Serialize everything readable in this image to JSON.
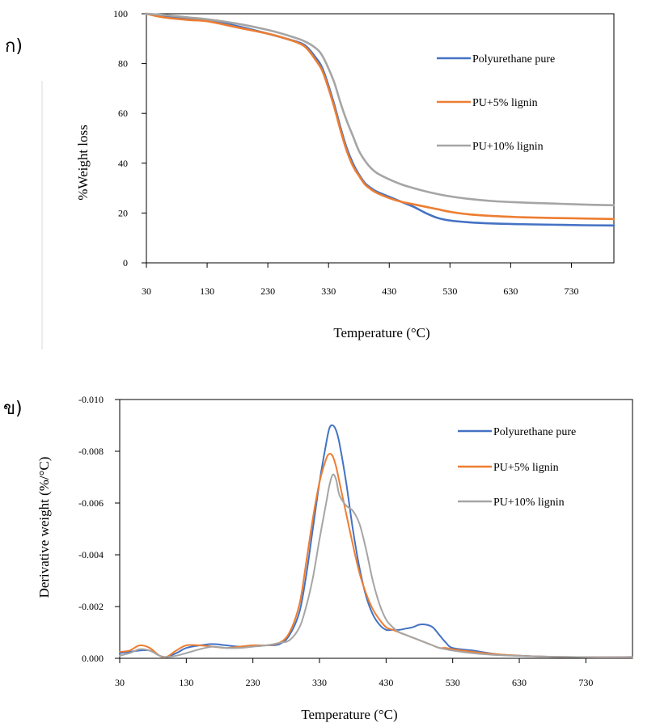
{
  "colors": {
    "pure": "#4472C4",
    "lignin5": "#ED7D31",
    "lignin10": "#A5A5A5"
  },
  "chart_data": [
    {
      "type": "line",
      "panel_label": "ก)",
      "xlabel": "Temperature (°C)",
      "ylabel": "%Weight loss",
      "xlim": [
        30,
        800
      ],
      "ylim": [
        0,
        100
      ],
      "xticks": [
        30,
        130,
        230,
        330,
        430,
        530,
        630,
        730
      ],
      "yticks": [
        0,
        20,
        40,
        60,
        80,
        100
      ],
      "grid": false,
      "legend": "right",
      "series": [
        {
          "name": "Polyurethane pure",
          "color_key": "pure",
          "x": [
            30,
            60,
            100,
            130,
            180,
            230,
            260,
            290,
            310,
            320,
            330,
            340,
            350,
            360,
            370,
            380,
            390,
            400,
            410,
            430,
            450,
            470,
            490,
            510,
            530,
            560,
            600,
            650,
            700,
            750,
            800
          ],
          "y": [
            100,
            99,
            98,
            97.5,
            95,
            92,
            90,
            87.5,
            82,
            78,
            71,
            63,
            54,
            46,
            40,
            35.5,
            32,
            30,
            28.5,
            26.5,
            24.5,
            22.5,
            20,
            18,
            17,
            16.3,
            15.8,
            15.5,
            15.3,
            15.1,
            15
          ]
        },
        {
          "name": "PU+5% lignin",
          "color_key": "lignin5",
          "x": [
            30,
            60,
            100,
            130,
            180,
            230,
            260,
            290,
            310,
            320,
            330,
            340,
            350,
            360,
            370,
            380,
            390,
            400,
            410,
            430,
            450,
            470,
            490,
            510,
            530,
            560,
            600,
            650,
            700,
            750,
            800
          ],
          "y": [
            100,
            98.5,
            97.5,
            97,
            94.5,
            92,
            90,
            87,
            81,
            77,
            70,
            62,
            53,
            45,
            39,
            35,
            31.5,
            29.5,
            28,
            26,
            24.5,
            23.5,
            22.5,
            21.5,
            20.5,
            19.5,
            18.8,
            18.3,
            18,
            17.8,
            17.6
          ]
        },
        {
          "name": "PU+10% lignin",
          "color_key": "lignin10",
          "x": [
            30,
            60,
            100,
            130,
            180,
            230,
            260,
            290,
            310,
            320,
            330,
            340,
            350,
            360,
            370,
            380,
            390,
            400,
            410,
            430,
            450,
            470,
            490,
            510,
            530,
            560,
            600,
            650,
            700,
            750,
            800
          ],
          "y": [
            100,
            99.5,
            98.5,
            97.8,
            96,
            93.5,
            91.5,
            89,
            86,
            83,
            78,
            72,
            64,
            57,
            51,
            45,
            41,
            38,
            36,
            33.5,
            31.5,
            30,
            28.7,
            27.6,
            26.7,
            25.7,
            24.8,
            24.2,
            23.8,
            23.4,
            23.1
          ]
        }
      ]
    },
    {
      "type": "line",
      "panel_label": "ข)",
      "xlabel": "Temperature (°C)",
      "ylabel": "Derivative weight (%/°C)",
      "xlim": [
        30,
        800
      ],
      "ylim": [
        0,
        -0.01
      ],
      "xticks": [
        30,
        130,
        230,
        330,
        430,
        530,
        630,
        730
      ],
      "yticks": [
        0,
        -0.002,
        -0.004,
        -0.006,
        -0.008,
        -0.01
      ],
      "ytick_labels": [
        "0.000",
        "-0.002",
        "-0.004",
        "-0.006",
        "-0.008",
        "-0.010"
      ],
      "grid": false,
      "legend": "top-right",
      "series": [
        {
          "name": "Polyurethane pure",
          "color_key": "pure",
          "x": [
            30,
            45,
            60,
            75,
            90,
            100,
            115,
            130,
            150,
            170,
            190,
            210,
            230,
            250,
            270,
            285,
            300,
            310,
            320,
            330,
            340,
            345,
            350,
            355,
            360,
            370,
            380,
            390,
            400,
            410,
            420,
            430,
            440,
            450,
            460,
            470,
            480,
            490,
            500,
            510,
            520,
            530,
            560,
            600,
            650,
            700,
            750,
            800
          ],
          "y": [
            -0.0002,
            -0.00025,
            -0.0003,
            -0.0003,
            -0.0001,
            -5e-05,
            -0.0002,
            -0.0004,
            -0.0005,
            -0.00055,
            -0.0005,
            -0.00045,
            -0.0005,
            -0.0005,
            -0.00055,
            -0.0009,
            -0.0018,
            -0.0032,
            -0.005,
            -0.0068,
            -0.0083,
            -0.0089,
            -0.009,
            -0.0088,
            -0.0083,
            -0.0068,
            -0.005,
            -0.0035,
            -0.0024,
            -0.0017,
            -0.0013,
            -0.0011,
            -0.0011,
            -0.0011,
            -0.00115,
            -0.0012,
            -0.0013,
            -0.0013,
            -0.0012,
            -0.0009,
            -0.0006,
            -0.0004,
            -0.0003,
            -0.00015,
            -8e-05,
            -5e-05,
            -4e-05,
            -5e-05
          ]
        },
        {
          "name": "PU+5% lignin",
          "color_key": "lignin5",
          "x": [
            30,
            45,
            60,
            75,
            90,
            100,
            115,
            130,
            150,
            170,
            190,
            210,
            230,
            250,
            270,
            285,
            300,
            310,
            320,
            330,
            340,
            345,
            350,
            355,
            360,
            370,
            380,
            390,
            400,
            410,
            420,
            430,
            440,
            450,
            460,
            470,
            480,
            490,
            500,
            510,
            520,
            530,
            560,
            600,
            650,
            700,
            750,
            800
          ],
          "y": [
            -0.00025,
            -0.0003,
            -0.0005,
            -0.0004,
            -0.0001,
            -5e-05,
            -0.0003,
            -0.0005,
            -0.0005,
            -0.00045,
            -0.0004,
            -0.00045,
            -0.0005,
            -0.0005,
            -0.0006,
            -0.001,
            -0.0021,
            -0.0037,
            -0.0054,
            -0.0068,
            -0.0077,
            -0.0079,
            -0.0078,
            -0.0074,
            -0.0068,
            -0.0056,
            -0.0044,
            -0.0033,
            -0.0025,
            -0.0019,
            -0.0015,
            -0.0012,
            -0.0011,
            -0.001,
            -0.0009,
            -0.0008,
            -0.0007,
            -0.0006,
            -0.0005,
            -0.0004,
            -0.0004,
            -0.00035,
            -0.00025,
            -0.00015,
            -8e-05,
            -5e-05,
            -4e-05,
            -4e-05
          ]
        },
        {
          "name": "PU+10% lignin",
          "color_key": "lignin10",
          "x": [
            30,
            45,
            60,
            75,
            90,
            100,
            115,
            130,
            150,
            170,
            190,
            210,
            230,
            250,
            270,
            285,
            300,
            310,
            320,
            330,
            340,
            345,
            350,
            355,
            360,
            370,
            380,
            390,
            400,
            410,
            420,
            430,
            440,
            450,
            460,
            470,
            480,
            490,
            500,
            510,
            520,
            530,
            560,
            600,
            650,
            700,
            750,
            800
          ],
          "y": [
            -0.0001,
            -0.0002,
            -0.00035,
            -0.0003,
            -0.0001,
            -5e-05,
            -0.0001,
            -0.0002,
            -0.00035,
            -0.00045,
            -0.0004,
            -0.0004,
            -0.00045,
            -0.0005,
            -0.0006,
            -0.0007,
            -0.0012,
            -0.002,
            -0.0031,
            -0.0046,
            -0.006,
            -0.0067,
            -0.0071,
            -0.0069,
            -0.0063,
            -0.0059,
            -0.0057,
            -0.0052,
            -0.0042,
            -0.003,
            -0.0021,
            -0.0015,
            -0.0012,
            -0.001,
            -0.0009,
            -0.0008,
            -0.0007,
            -0.0006,
            -0.0005,
            -0.0004,
            -0.00035,
            -0.0003,
            -0.0002,
            -0.00012,
            -8e-05,
            -5e-05,
            -4e-05,
            -4e-05
          ]
        }
      ]
    }
  ]
}
